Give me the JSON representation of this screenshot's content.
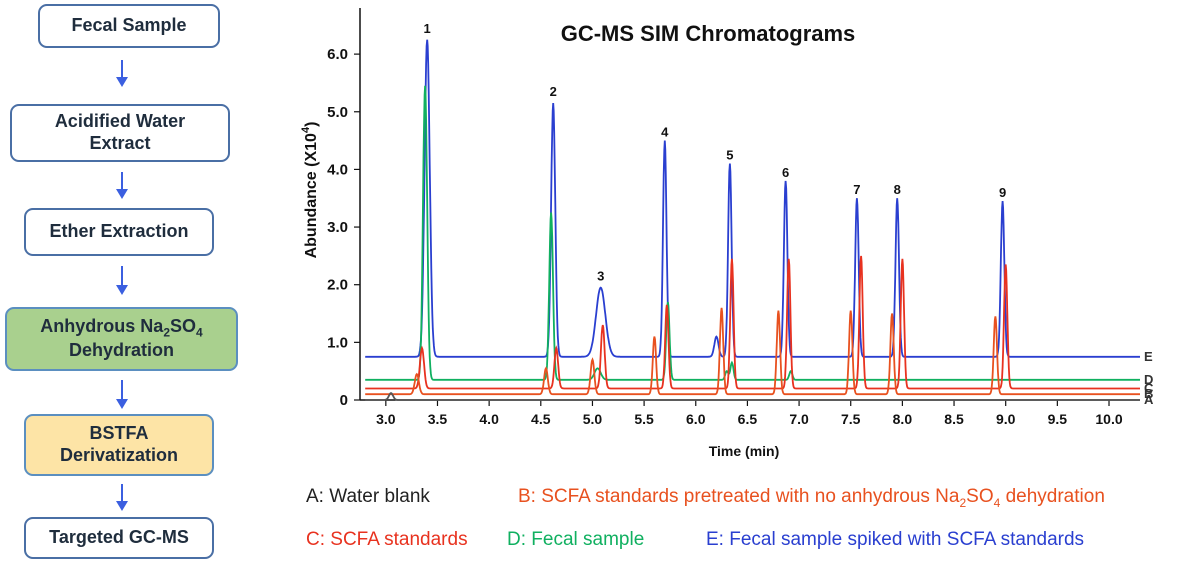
{
  "flowchart": {
    "steps": [
      {
        "text": "Fecal Sample",
        "style": "plain"
      },
      {
        "text": "Acidified Water Extract",
        "lines": [
          "Acidified Water",
          "Extract"
        ],
        "style": "plain"
      },
      {
        "text": "Ether Extraction",
        "style": "plain"
      },
      {
        "text": "Anhydrous Na2SO4 Dehydration",
        "lines": [
          "Anhydrous Na",
          "2",
          "SO",
          "4",
          "Dehydration"
        ],
        "style": "green"
      },
      {
        "text": "BSTFA Derivatization",
        "lines": [
          "BSTFA",
          "Derivatization"
        ],
        "style": "orange"
      },
      {
        "text": "Targeted GC-MS",
        "style": "plain"
      }
    ]
  },
  "legend": {
    "a": {
      "text": "A: Water blank",
      "color": "#222222"
    },
    "b": {
      "prefix": "B:  SCFA standards pretreated with no anhydrous Na",
      "sub1": "2",
      "mid": "SO",
      "sub2": "4",
      "suffix": " dehydration",
      "color": "#e8511f"
    },
    "c": {
      "text": "C:  SCFA standards",
      "color": "#e8321f"
    },
    "d": {
      "text": "D: Fecal sample",
      "color": "#10b060"
    },
    "e": {
      "text": "E: Fecal sample spiked with SCFA standards",
      "color": "#2a3fd0"
    }
  },
  "chart_data": {
    "type": "line",
    "title": "GC-MS SIM Chromatograms",
    "xlabel": "Time (min)",
    "ylabel": "Abundance (X10",
    "ylabel_sup": "4",
    "ylabel_close": ")",
    "xlim": [
      2.75,
      10.3
    ],
    "ylim": [
      0,
      6.8
    ],
    "xticks": [
      3.0,
      3.5,
      4.0,
      4.5,
      5.0,
      5.5,
      6.0,
      6.5,
      7.0,
      7.5,
      8.0,
      8.5,
      9.0,
      9.5,
      10.0
    ],
    "xtick_labels": [
      "3.0",
      "3.5",
      "4.0",
      "4.5",
      "5.0",
      "5.5",
      "6.0",
      "6.5",
      "7.0",
      "7.5",
      "8.0",
      "8.5",
      "9.0",
      "9.5",
      "10.0"
    ],
    "yticks": [
      0,
      1.0,
      2.0,
      3.0,
      4.0,
      5.0,
      6.0
    ],
    "ytick_labels": [
      "0",
      "1.0",
      "2.0",
      "3.0",
      "4.0",
      "5.0",
      "6.0"
    ],
    "series": [
      {
        "name": "A",
        "label": "A",
        "color": "#555555",
        "offset": 0.0,
        "time_shift": 0.0,
        "peaks": [
          [
            3.05,
            0.12,
            0.02
          ]
        ]
      },
      {
        "name": "B",
        "label": "B",
        "color": "#e8511f",
        "offset": 0.1,
        "time_shift": -0.25,
        "peaks": [
          [
            3.3,
            0.35,
            0.02
          ],
          [
            4.55,
            0.45,
            0.018
          ],
          [
            5.0,
            0.6,
            0.018
          ],
          [
            5.6,
            1.0,
            0.016
          ],
          [
            6.25,
            1.5,
            0.016
          ],
          [
            6.8,
            1.45,
            0.016
          ],
          [
            7.5,
            1.45,
            0.016
          ],
          [
            7.9,
            1.4,
            0.016
          ],
          [
            8.9,
            1.35,
            0.016
          ]
        ]
      },
      {
        "name": "C",
        "label": "C",
        "color": "#e8321f",
        "offset": 0.2,
        "time_shift": -0.25,
        "peaks": [
          [
            3.35,
            0.7,
            0.02
          ],
          [
            4.65,
            0.7,
            0.018
          ],
          [
            5.1,
            1.1,
            0.018
          ],
          [
            5.72,
            1.45,
            0.016
          ],
          [
            6.35,
            2.25,
            0.016
          ],
          [
            6.9,
            2.25,
            0.016
          ],
          [
            7.6,
            2.3,
            0.016
          ],
          [
            8.0,
            2.25,
            0.016
          ],
          [
            9.0,
            2.15,
            0.016
          ]
        ]
      },
      {
        "name": "D",
        "label": "D",
        "color": "#10b060",
        "offset": 0.35,
        "time_shift": -0.1,
        "peaks": [
          [
            3.38,
            5.1,
            0.02
          ],
          [
            4.6,
            2.9,
            0.018
          ],
          [
            5.05,
            0.2,
            0.03
          ],
          [
            5.73,
            1.35,
            0.016
          ],
          [
            6.3,
            0.15,
            0.015
          ],
          [
            6.35,
            0.3,
            0.015
          ],
          [
            6.92,
            0.15,
            0.015
          ]
        ]
      },
      {
        "name": "E",
        "label": "E",
        "color": "#2a3fd0",
        "offset": 0.75,
        "time_shift": 0.0,
        "peaks": [
          [
            3.4,
            5.5,
            0.025
          ],
          [
            4.62,
            4.4,
            0.02
          ],
          [
            5.08,
            1.2,
            0.045
          ],
          [
            5.7,
            3.75,
            0.017
          ],
          [
            6.2,
            0.35,
            0.02
          ],
          [
            6.33,
            3.35,
            0.017
          ],
          [
            6.87,
            3.05,
            0.017
          ],
          [
            7.56,
            2.75,
            0.017
          ],
          [
            7.95,
            2.75,
            0.017
          ],
          [
            8.97,
            2.7,
            0.017
          ]
        ]
      }
    ],
    "peak_labels": [
      {
        "label": "1",
        "x": 3.4,
        "y": 6.3
      },
      {
        "label": "2",
        "x": 4.62,
        "y": 5.2
      },
      {
        "label": "3",
        "x": 5.08,
        "y": 2.0
      },
      {
        "label": "4",
        "x": 5.7,
        "y": 4.5
      },
      {
        "label": "5",
        "x": 6.33,
        "y": 4.1
      },
      {
        "label": "6",
        "x": 6.87,
        "y": 3.8
      },
      {
        "label": "7",
        "x": 7.56,
        "y": 3.5
      },
      {
        "label": "8",
        "x": 7.95,
        "y": 3.5
      },
      {
        "label": "9",
        "x": 8.97,
        "y": 3.45
      }
    ]
  }
}
